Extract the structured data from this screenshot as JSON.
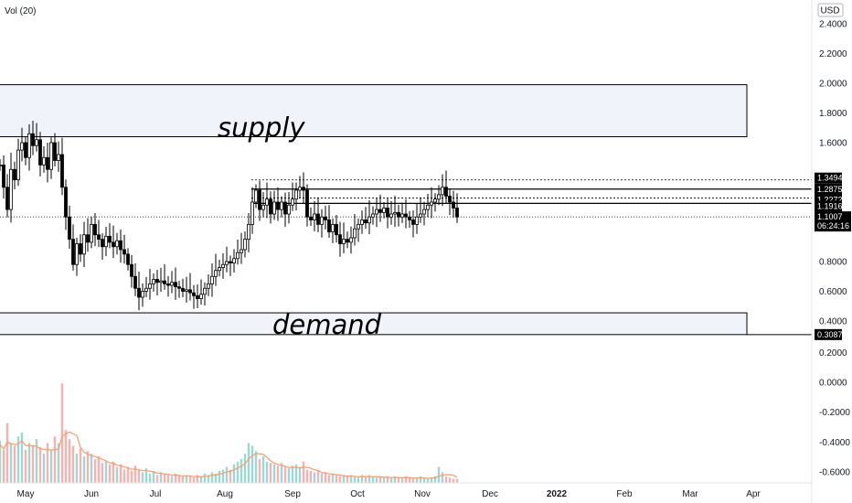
{
  "indicator_label": "Vol (20)",
  "currency_badge": "USD",
  "colors": {
    "up": "#26a69a",
    "down": "#ef5350",
    "candle": "#000000",
    "zone_fill": "#f0f3fa",
    "vol_ma": "#ff9a66",
    "tag_bg": "#000000"
  },
  "chart_data": {
    "type": "candlestick",
    "price_axis": {
      "ticks": [
        "2.4000",
        "2.2000",
        "2.0000",
        "1.8000",
        "1.6000",
        "0.8000",
        "0.6000",
        "0.4000",
        "0.2000",
        "0.0000",
        "-0.2000",
        "-0.4000",
        "-0.6000"
      ],
      "tick_values": [
        2.4,
        2.2,
        2.0,
        1.8,
        1.6,
        0.8,
        0.6,
        0.4,
        0.2,
        0.0,
        -0.2,
        -0.4,
        -0.6
      ]
    },
    "time_axis": {
      "labels": [
        "May",
        "Jun",
        "Jul",
        "Aug",
        "Sep",
        "Oct",
        "Nov",
        "Dec",
        "2022",
        "Feb",
        "Mar",
        "Apr"
      ]
    },
    "zones": [
      {
        "label": "supply",
        "top": 1.99,
        "bottom": 1.64,
        "end_label": "Apr"
      },
      {
        "label": "demand",
        "top": 0.455,
        "bottom": 0.3087,
        "end_label": "Apr"
      }
    ],
    "price_tags": [
      {
        "text": "1.3494",
        "value": 1.3494
      },
      {
        "text": "1.2875",
        "value": 1.2875
      },
      {
        "text": "1.2272",
        "value": 1.2272
      },
      {
        "text": "1.1916",
        "value": 1.1916
      },
      {
        "text": "0.3087",
        "value": 0.3087
      }
    ],
    "last_price": {
      "price": "1.1007",
      "countdown": "06:24:16",
      "value": 1.1007
    },
    "series": [
      {
        "name": "price",
        "points": [
          [
            0,
            1.45
          ],
          [
            4,
            1.3
          ],
          [
            8,
            1.15
          ],
          [
            12,
            1.42
          ],
          [
            16,
            1.35
          ],
          [
            20,
            1.55
          ],
          [
            24,
            1.6
          ],
          [
            28,
            1.5
          ],
          [
            32,
            1.66
          ],
          [
            36,
            1.58
          ],
          [
            40,
            1.62
          ],
          [
            44,
            1.45
          ],
          [
            48,
            1.5
          ],
          [
            52,
            1.42
          ],
          [
            56,
            1.6
          ],
          [
            60,
            1.48
          ],
          [
            64,
            1.52
          ],
          [
            68,
            1.3
          ],
          [
            72,
            1.1
          ],
          [
            76,
            0.95
          ],
          [
            80,
            0.78
          ],
          [
            84,
            0.92
          ],
          [
            88,
            0.85
          ],
          [
            92,
            0.98
          ],
          [
            96,
            0.93
          ],
          [
            100,
            1.05
          ],
          [
            104,
            0.98
          ],
          [
            108,
            0.95
          ],
          [
            112,
            0.9
          ],
          [
            116,
            0.97
          ],
          [
            120,
            0.93
          ],
          [
            124,
            0.9
          ],
          [
            128,
            0.94
          ],
          [
            132,
            0.88
          ],
          [
            136,
            0.85
          ],
          [
            140,
            0.78
          ],
          [
            144,
            0.7
          ],
          [
            148,
            0.62
          ],
          [
            152,
            0.56
          ],
          [
            156,
            0.6
          ],
          [
            160,
            0.62
          ],
          [
            164,
            0.65
          ],
          [
            168,
            0.68
          ],
          [
            172,
            0.66
          ],
          [
            176,
            0.67
          ],
          [
            180,
            0.65
          ],
          [
            184,
            0.64
          ],
          [
            188,
            0.66
          ],
          [
            192,
            0.63
          ],
          [
            196,
            0.62
          ],
          [
            200,
            0.6
          ],
          [
            204,
            0.61
          ],
          [
            208,
            0.59
          ],
          [
            212,
            0.57
          ],
          [
            216,
            0.55
          ],
          [
            220,
            0.58
          ],
          [
            224,
            0.62
          ],
          [
            228,
            0.65
          ],
          [
            232,
            0.7
          ],
          [
            236,
            0.74
          ],
          [
            240,
            0.76
          ],
          [
            244,
            0.78
          ],
          [
            248,
            0.8
          ],
          [
            252,
            0.79
          ],
          [
            256,
            0.82
          ],
          [
            260,
            0.86
          ],
          [
            264,
            0.88
          ],
          [
            268,
            0.95
          ],
          [
            272,
            1.05
          ],
          [
            276,
            1.2
          ],
          [
            280,
            1.28
          ],
          [
            284,
            1.15
          ],
          [
            288,
            1.18
          ],
          [
            292,
            1.22
          ],
          [
            296,
            1.12
          ],
          [
            300,
            1.2
          ],
          [
            304,
            1.15
          ],
          [
            308,
            1.2
          ],
          [
            312,
            1.12
          ],
          [
            316,
            1.18
          ],
          [
            320,
            1.22
          ],
          [
            324,
            1.28
          ],
          [
            328,
            1.3
          ],
          [
            332,
            1.28
          ],
          [
            336,
            1.1
          ],
          [
            340,
            1.08
          ],
          [
            344,
            1.12
          ],
          [
            348,
            1.05
          ],
          [
            352,
            1.1
          ],
          [
            356,
            1.08
          ],
          [
            360,
            1.0
          ],
          [
            364,
            1.05
          ],
          [
            368,
            0.98
          ],
          [
            372,
            0.92
          ],
          [
            376,
            0.95
          ],
          [
            380,
            0.93
          ],
          [
            384,
            0.96
          ],
          [
            388,
            1.02
          ],
          [
            392,
            1.05
          ],
          [
            396,
            1.08
          ],
          [
            400,
            1.06
          ],
          [
            404,
            1.1
          ],
          [
            408,
            1.12
          ],
          [
            412,
            1.15
          ],
          [
            416,
            1.13
          ],
          [
            420,
            1.16
          ],
          [
            424,
            1.1
          ],
          [
            428,
            1.12
          ],
          [
            432,
            1.13
          ],
          [
            436,
            1.1
          ],
          [
            440,
            1.12
          ],
          [
            444,
            1.1
          ],
          [
            448,
            1.08
          ],
          [
            452,
            1.05
          ],
          [
            456,
            1.1
          ],
          [
            460,
            1.12
          ],
          [
            464,
            1.15
          ],
          [
            468,
            1.18
          ],
          [
            472,
            1.2
          ],
          [
            476,
            1.22
          ],
          [
            480,
            1.25
          ],
          [
            484,
            1.3
          ],
          [
            488,
            1.24
          ],
          [
            492,
            1.2
          ],
          [
            496,
            1.16
          ],
          [
            500,
            1.1
          ]
        ]
      },
      {
        "name": "volume",
        "points": [
          [
            0,
            0.32
          ],
          [
            4,
            0.25
          ],
          [
            8,
            0.45
          ],
          [
            12,
            0.3
          ],
          [
            16,
            0.28
          ],
          [
            20,
            0.35
          ],
          [
            24,
            0.38
          ],
          [
            28,
            0.25
          ],
          [
            32,
            0.3
          ],
          [
            36,
            0.28
          ],
          [
            40,
            0.33
          ],
          [
            44,
            0.27
          ],
          [
            48,
            0.22
          ],
          [
            52,
            0.3
          ],
          [
            56,
            0.25
          ],
          [
            60,
            0.35
          ],
          [
            64,
            0.3
          ],
          [
            68,
            0.75
          ],
          [
            72,
            0.4
          ],
          [
            76,
            0.33
          ],
          [
            80,
            0.28
          ],
          [
            84,
            0.22
          ],
          [
            88,
            0.26
          ],
          [
            92,
            0.2
          ],
          [
            96,
            0.24
          ],
          [
            100,
            0.22
          ],
          [
            104,
            0.18
          ],
          [
            108,
            0.2
          ],
          [
            112,
            0.15
          ],
          [
            116,
            0.17
          ],
          [
            120,
            0.14
          ],
          [
            124,
            0.16
          ],
          [
            128,
            0.12
          ],
          [
            132,
            0.14
          ],
          [
            136,
            0.1
          ],
          [
            140,
            0.12
          ],
          [
            144,
            0.09
          ],
          [
            148,
            0.13
          ],
          [
            152,
            0.1
          ],
          [
            156,
            0.08
          ],
          [
            160,
            0.11
          ],
          [
            164,
            0.07
          ],
          [
            168,
            0.09
          ],
          [
            172,
            0.06
          ],
          [
            176,
            0.08
          ],
          [
            180,
            0.07
          ],
          [
            184,
            0.06
          ],
          [
            188,
            0.05
          ],
          [
            192,
            0.07
          ],
          [
            196,
            0.06
          ],
          [
            200,
            0.05
          ],
          [
            204,
            0.06
          ],
          [
            208,
            0.05
          ],
          [
            212,
            0.04
          ],
          [
            216,
            0.06
          ],
          [
            220,
            0.05
          ],
          [
            224,
            0.07
          ],
          [
            228,
            0.06
          ],
          [
            232,
            0.08
          ],
          [
            236,
            0.07
          ],
          [
            240,
            0.09
          ],
          [
            244,
            0.1
          ],
          [
            248,
            0.12
          ],
          [
            252,
            0.1
          ],
          [
            256,
            0.14
          ],
          [
            260,
            0.16
          ],
          [
            264,
            0.18
          ],
          [
            268,
            0.22
          ],
          [
            272,
            0.3
          ],
          [
            276,
            0.28
          ],
          [
            280,
            0.24
          ],
          [
            284,
            0.18
          ],
          [
            288,
            0.2
          ],
          [
            292,
            0.16
          ],
          [
            296,
            0.15
          ],
          [
            300,
            0.14
          ],
          [
            304,
            0.13
          ],
          [
            308,
            0.15
          ],
          [
            312,
            0.12
          ],
          [
            316,
            0.11
          ],
          [
            320,
            0.13
          ],
          [
            324,
            0.14
          ],
          [
            328,
            0.12
          ],
          [
            332,
            0.16
          ],
          [
            336,
            0.1
          ],
          [
            340,
            0.09
          ],
          [
            344,
            0.08
          ],
          [
            348,
            0.09
          ],
          [
            352,
            0.07
          ],
          [
            356,
            0.08
          ],
          [
            360,
            0.06
          ],
          [
            364,
            0.07
          ],
          [
            368,
            0.06
          ],
          [
            372,
            0.05
          ],
          [
            376,
            0.06
          ],
          [
            380,
            0.05
          ],
          [
            384,
            0.06
          ],
          [
            388,
            0.05
          ],
          [
            392,
            0.04
          ],
          [
            396,
            0.06
          ],
          [
            400,
            0.05
          ],
          [
            404,
            0.06
          ],
          [
            408,
            0.05
          ],
          [
            412,
            0.04
          ],
          [
            416,
            0.05
          ],
          [
            420,
            0.04
          ],
          [
            424,
            0.05
          ],
          [
            428,
            0.04
          ],
          [
            432,
            0.05
          ],
          [
            436,
            0.04
          ],
          [
            440,
            0.04
          ],
          [
            444,
            0.05
          ],
          [
            448,
            0.04
          ],
          [
            452,
            0.03
          ],
          [
            456,
            0.04
          ],
          [
            460,
            0.05
          ],
          [
            464,
            0.04
          ],
          [
            468,
            0.03
          ],
          [
            472,
            0.04
          ],
          [
            476,
            0.05
          ],
          [
            480,
            0.12
          ],
          [
            484,
            0.08
          ],
          [
            488,
            0.05
          ],
          [
            492,
            0.04
          ],
          [
            496,
            0.03
          ],
          [
            500,
            0.03
          ]
        ]
      }
    ]
  }
}
